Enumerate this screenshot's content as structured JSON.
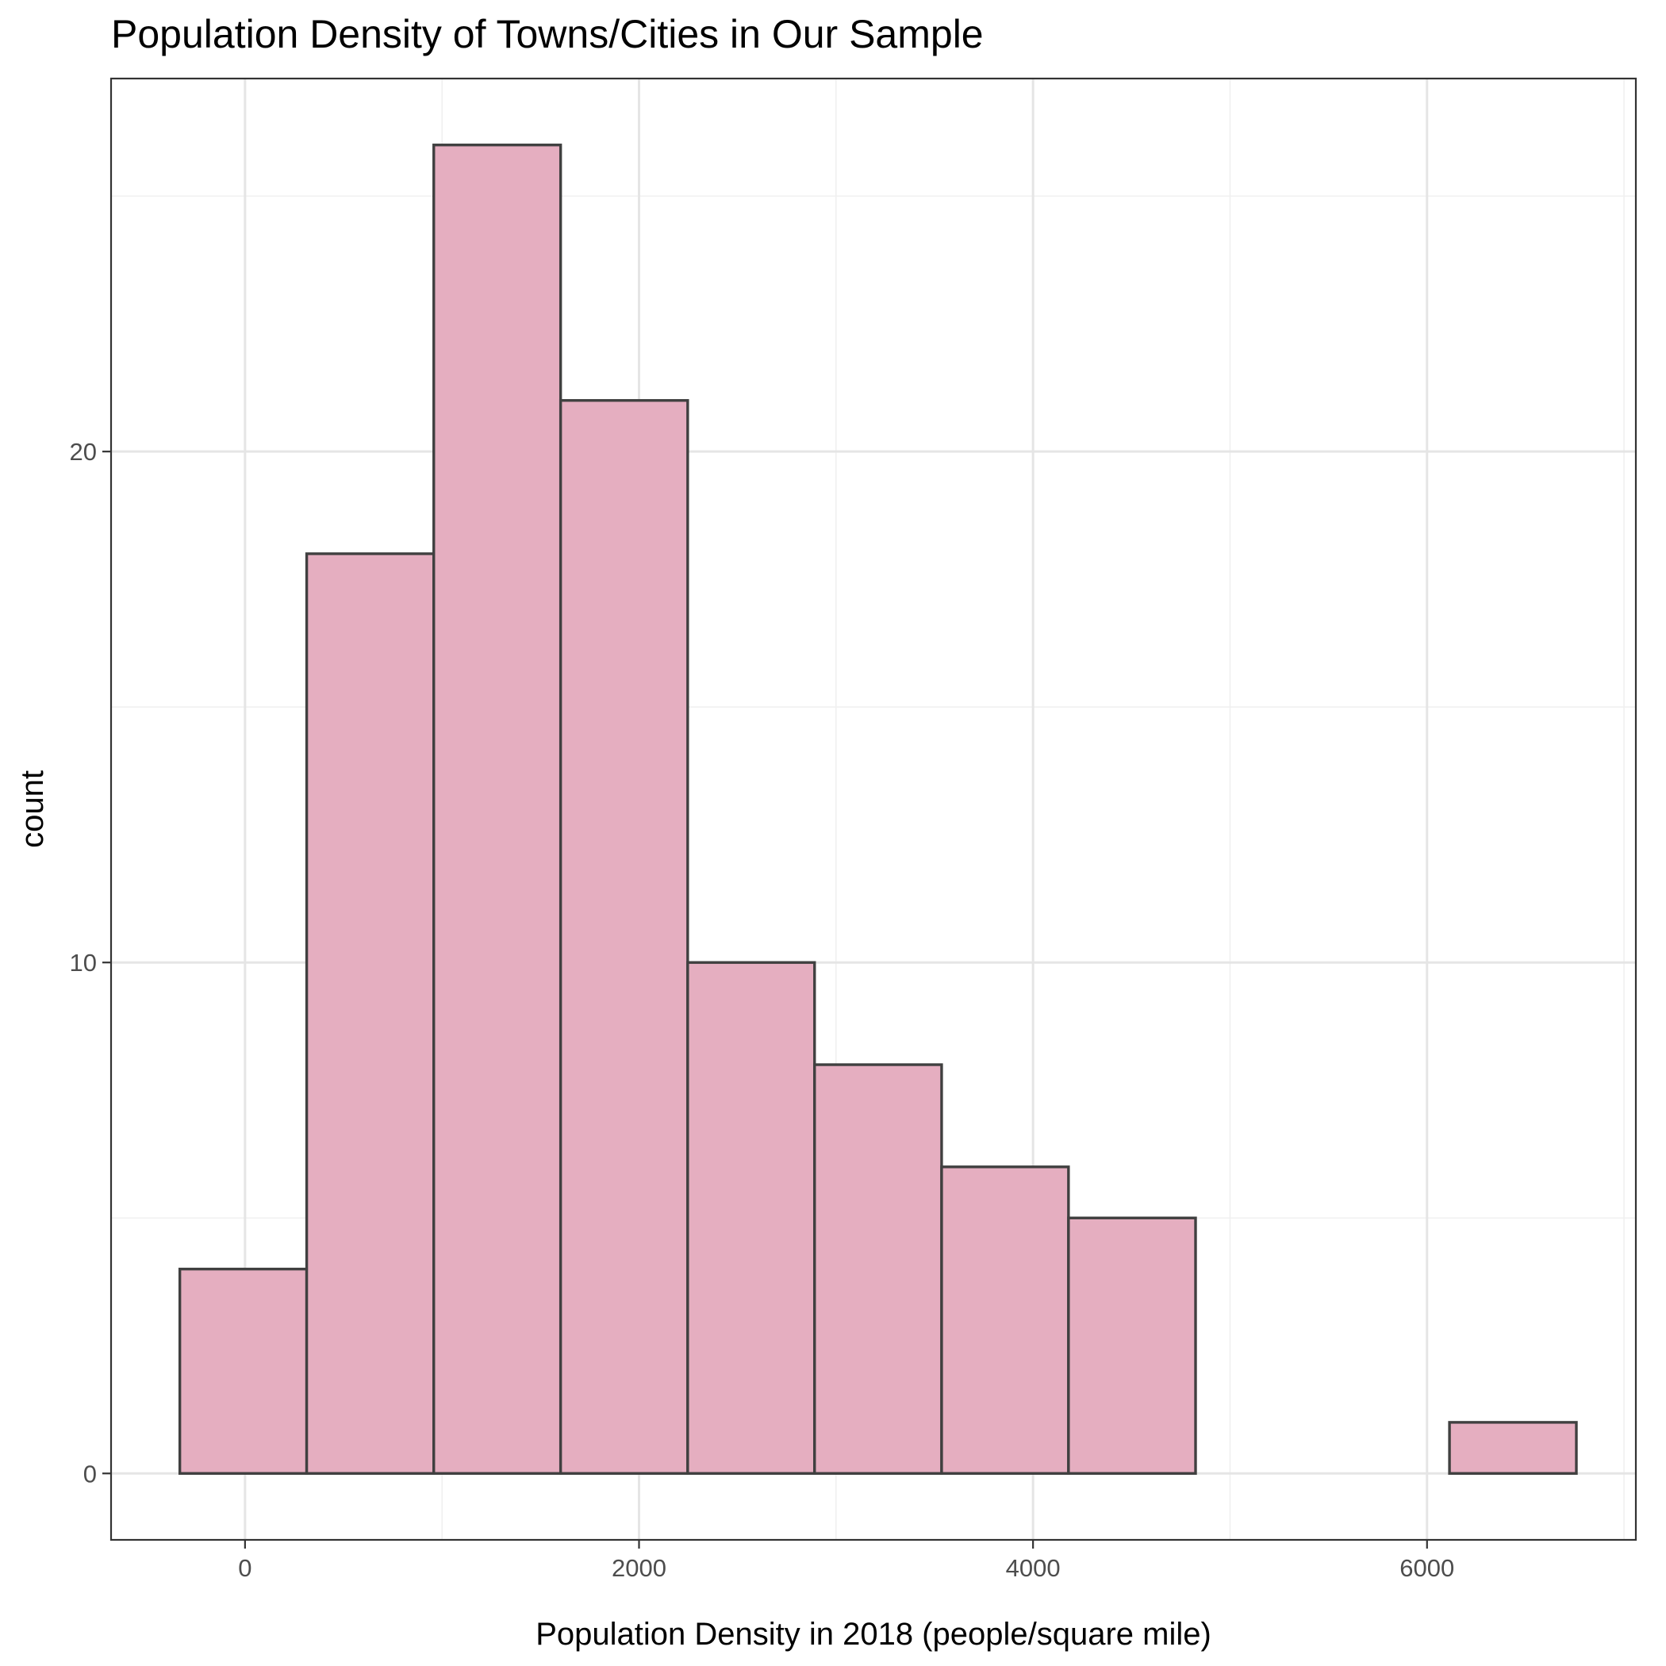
{
  "chart_data": {
    "type": "bar",
    "title": "Population Density of Towns/Cities in Our Sample",
    "xlabel": "Population Density in 2018 (people/square mile)",
    "ylabel": "count",
    "xlim": [
      -680,
      7060
    ],
    "ylim": [
      -1.3,
      27.3
    ],
    "x_ticks": [
      0,
      2000,
      4000,
      6000
    ],
    "x_tick_labels": [
      "0",
      "2000",
      "4000",
      "6000"
    ],
    "x_minor_ticks": [
      1000,
      3000,
      5000,
      7000
    ],
    "y_ticks": [
      0,
      10,
      20
    ],
    "y_tick_labels": [
      "0",
      "10",
      "20"
    ],
    "y_minor_ticks": [
      5,
      15,
      25
    ],
    "grid": true,
    "bins": [
      {
        "x_start": -331,
        "x_end": 313,
        "count": 4
      },
      {
        "x_start": 313,
        "x_end": 958,
        "count": 18
      },
      {
        "x_start": 958,
        "x_end": 1602,
        "count": 26
      },
      {
        "x_start": 1602,
        "x_end": 2247,
        "count": 21
      },
      {
        "x_start": 2247,
        "x_end": 2891,
        "count": 10
      },
      {
        "x_start": 2891,
        "x_end": 3536,
        "count": 8
      },
      {
        "x_start": 3536,
        "x_end": 4180,
        "count": 6
      },
      {
        "x_start": 4180,
        "x_end": 4825,
        "count": 5
      },
      {
        "x_start": 4825,
        "x_end": 5469,
        "count": 0
      },
      {
        "x_start": 5469,
        "x_end": 6114,
        "count": 0
      },
      {
        "x_start": 6114,
        "x_end": 6758,
        "count": 1
      }
    ],
    "fill_color": "#e5aec0",
    "edge_color": "#404040"
  }
}
